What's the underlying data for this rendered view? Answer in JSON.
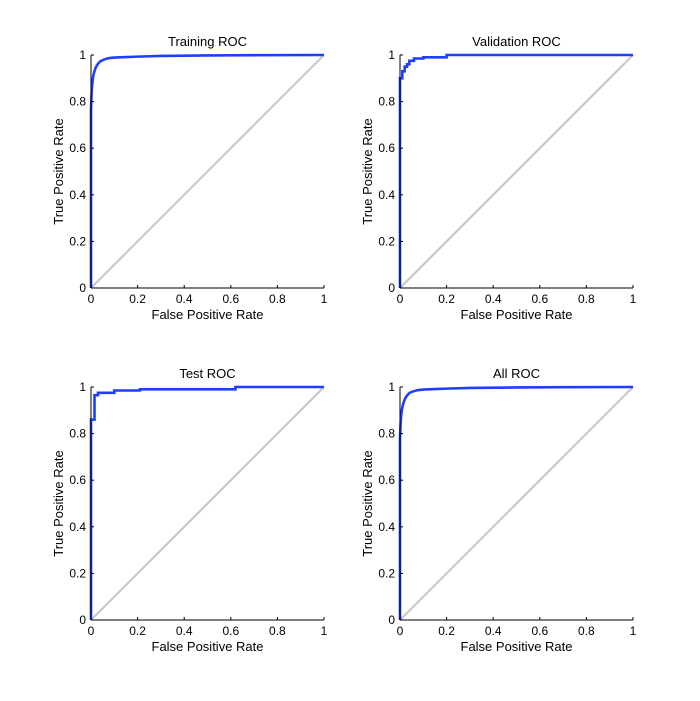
{
  "figure": {
    "roc_line_color": "#1f3fff",
    "diagonal_color": "#c8c8c8",
    "axis_color": "#000000"
  },
  "chart_data": [
    {
      "type": "line",
      "title": "Training ROC",
      "xlabel": "False Positive Rate",
      "ylabel": "True Positive Rate",
      "xlim": [
        0,
        1
      ],
      "ylim": [
        0,
        1
      ],
      "xticks": [
        "0",
        "0.2",
        "0.4",
        "0.6",
        "0.8",
        "1"
      ],
      "yticks": [
        "0",
        "0.2",
        "0.4",
        "0.6",
        "0.8",
        "1"
      ],
      "grid": false,
      "series": [
        {
          "role": "roc",
          "x": [
            0,
            0,
            0.002,
            0.004,
            0.006,
            0.008,
            0.01,
            0.012,
            0.015,
            0.018,
            0.02,
            0.025,
            0.03,
            0.035,
            0.04,
            0.05,
            0.06,
            0.07,
            0.08,
            0.1,
            0.15,
            0.2,
            0.3,
            0.5,
            0.7,
            1
          ],
          "y": [
            0,
            0.77,
            0.82,
            0.86,
            0.88,
            0.9,
            0.91,
            0.92,
            0.93,
            0.94,
            0.945,
            0.955,
            0.962,
            0.968,
            0.973,
            0.978,
            0.982,
            0.985,
            0.987,
            0.989,
            0.991,
            0.993,
            0.996,
            0.998,
            0.999,
            1
          ]
        },
        {
          "role": "reference",
          "x": [
            0,
            1
          ],
          "y": [
            0,
            1
          ]
        }
      ]
    },
    {
      "type": "line",
      "title": "Validation ROC",
      "xlabel": "False Positive Rate",
      "ylabel": "True Positive Rate",
      "xlim": [
        0,
        1
      ],
      "ylim": [
        0,
        1
      ],
      "xticks": [
        "0",
        "0.2",
        "0.4",
        "0.6",
        "0.8",
        "1"
      ],
      "yticks": [
        "0",
        "0.2",
        "0.4",
        "0.6",
        "0.8",
        "1"
      ],
      "grid": false,
      "series": [
        {
          "role": "roc",
          "x": [
            0,
            0,
            0.01,
            0.01,
            0.02,
            0.02,
            0.03,
            0.03,
            0.04,
            0.04,
            0.06,
            0.06,
            0.1,
            0.1,
            0.2,
            0.2,
            1
          ],
          "y": [
            0,
            0.9,
            0.9,
            0.93,
            0.93,
            0.95,
            0.95,
            0.96,
            0.96,
            0.975,
            0.975,
            0.985,
            0.985,
            0.99,
            0.99,
            1,
            1
          ]
        },
        {
          "role": "reference",
          "x": [
            0,
            1
          ],
          "y": [
            0,
            1
          ]
        }
      ]
    },
    {
      "type": "line",
      "title": "Test ROC",
      "xlabel": "False Positive Rate",
      "ylabel": "True Positive Rate",
      "xlim": [
        0,
        1
      ],
      "ylim": [
        0,
        1
      ],
      "xticks": [
        "0",
        "0.2",
        "0.4",
        "0.6",
        "0.8",
        "1"
      ],
      "yticks": [
        "0",
        "0.2",
        "0.4",
        "0.6",
        "0.8",
        "1"
      ],
      "grid": false,
      "series": [
        {
          "role": "roc",
          "x": [
            0,
            0,
            0.015,
            0.015,
            0.03,
            0.03,
            0.1,
            0.1,
            0.21,
            0.21,
            0.62,
            0.62,
            1
          ],
          "y": [
            0,
            0.86,
            0.86,
            0.965,
            0.965,
            0.975,
            0.975,
            0.985,
            0.985,
            0.99,
            0.99,
            1,
            1
          ]
        },
        {
          "role": "reference",
          "x": [
            0,
            1
          ],
          "y": [
            0,
            1
          ]
        }
      ]
    },
    {
      "type": "line",
      "title": "All ROC",
      "xlabel": "False Positive Rate",
      "ylabel": "True Positive Rate",
      "xlim": [
        0,
        1
      ],
      "ylim": [
        0,
        1
      ],
      "xticks": [
        "0",
        "0.2",
        "0.4",
        "0.6",
        "0.8",
        "1"
      ],
      "yticks": [
        "0",
        "0.2",
        "0.4",
        "0.6",
        "0.8",
        "1"
      ],
      "grid": false,
      "series": [
        {
          "role": "roc",
          "x": [
            0,
            0,
            0.002,
            0.004,
            0.006,
            0.008,
            0.01,
            0.012,
            0.015,
            0.018,
            0.02,
            0.025,
            0.03,
            0.035,
            0.04,
            0.05,
            0.06,
            0.07,
            0.08,
            0.1,
            0.15,
            0.2,
            0.3,
            0.5,
            0.7,
            1
          ],
          "y": [
            0,
            0.78,
            0.83,
            0.865,
            0.885,
            0.9,
            0.912,
            0.922,
            0.932,
            0.94,
            0.946,
            0.956,
            0.963,
            0.969,
            0.974,
            0.979,
            0.982,
            0.985,
            0.987,
            0.989,
            0.991,
            0.993,
            0.996,
            0.998,
            0.999,
            1
          ]
        },
        {
          "role": "reference",
          "x": [
            0,
            1
          ],
          "y": [
            0,
            1
          ]
        }
      ]
    }
  ]
}
